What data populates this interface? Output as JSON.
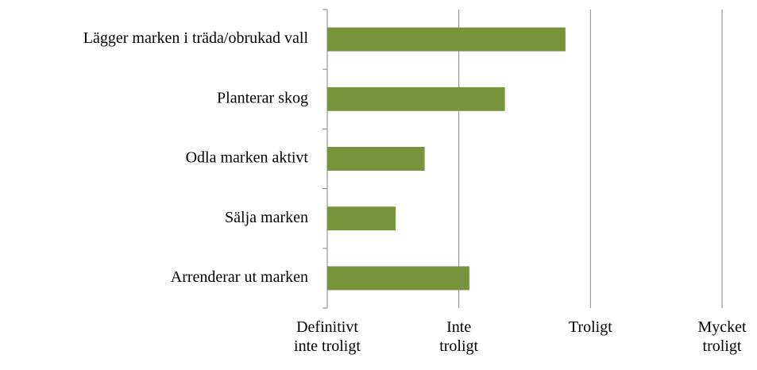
{
  "chart_data": {
    "type": "barh",
    "categories": [
      "Lägger marken i träda/obrukad vall",
      "Planterar skog",
      "Odla marken aktivt",
      "Sälja marken",
      "Arrenderar ut marken"
    ],
    "values": [
      2.81,
      2.35,
      1.74,
      1.52,
      2.08
    ],
    "color": "#77933c",
    "xlim": [
      1,
      4
    ],
    "xticks": [
      {
        "value": 1,
        "label": "Definitivt\ninte troligt"
      },
      {
        "value": 2,
        "label": "Inte\ntroligt"
      },
      {
        "value": 3,
        "label": "Troligt"
      },
      {
        "value": 4,
        "label": "Mycket\ntroligt"
      }
    ],
    "grid": true
  }
}
